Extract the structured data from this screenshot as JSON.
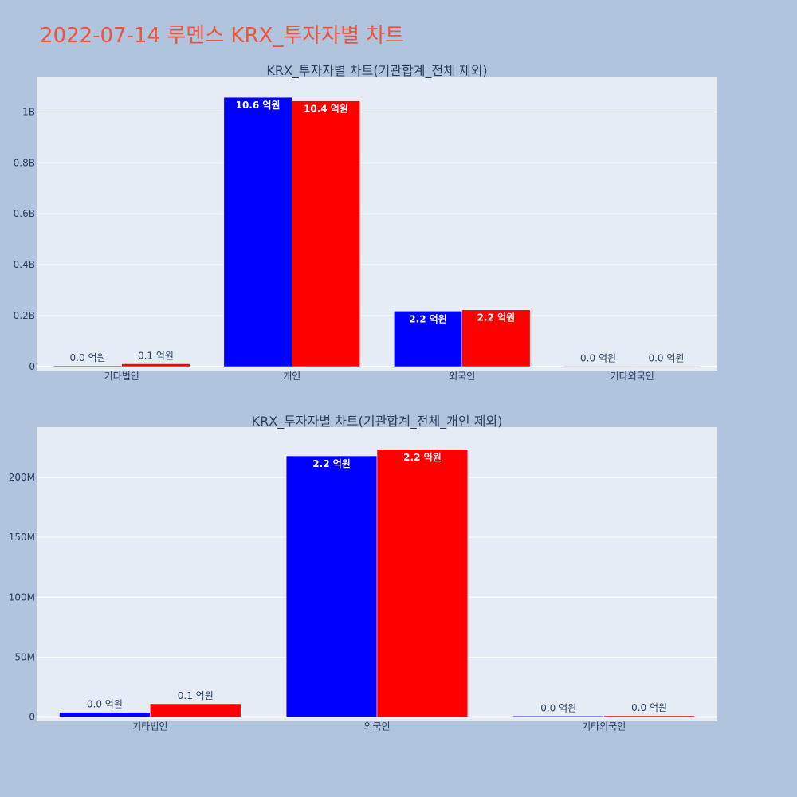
{
  "page_title": "2022-07-14 루멘스 KRX_투자자별 차트",
  "colors": {
    "background": "#b0c4de",
    "plot_bg": "#e5ecf6",
    "series_a": "#0000ff",
    "series_b": "#ff0000",
    "title": "#ef553b"
  },
  "chart_data": [
    {
      "type": "bar",
      "title": "KRX_투자자별 차트(기관합계_전체 제외)",
      "categories": [
        "기타법인",
        "개인",
        "외국인",
        "기타외국인"
      ],
      "series": [
        {
          "values": [
            3000000,
            1057000000,
            218000000,
            800000
          ],
          "labels": [
            "0.0 억원",
            "10.6 억원",
            "2.2 억원",
            "0.0 억원"
          ],
          "color": "#0000ff"
        },
        {
          "values": [
            11000000,
            1043000000,
            223000000,
            800000
          ],
          "labels": [
            "0.1 억원",
            "10.4 억원",
            "2.2 억원",
            "0.0 억원"
          ],
          "color": "#ff0000"
        }
      ],
      "ylim": [
        0,
        1120000000
      ],
      "yticks": [
        0,
        200000000,
        400000000,
        600000000,
        800000000,
        1000000000
      ],
      "ytick_labels": [
        "0",
        "0.2B",
        "0.4B",
        "0.6B",
        "0.8B",
        "1B"
      ],
      "grid": true
    },
    {
      "type": "bar",
      "title": "KRX_투자자별 차트(기관합계_전체_개인 제외)",
      "categories": [
        "기타법인",
        "외국인",
        "기타외국인"
      ],
      "series": [
        {
          "values": [
            3900000,
            218000000,
            800000
          ],
          "labels": [
            "0.0 억원",
            "2.2 억원",
            "0.0 억원"
          ],
          "color": "#0000ff"
        },
        {
          "values": [
            11000000,
            223500000,
            1000000
          ],
          "labels": [
            "0.1 억원",
            "2.2 억원",
            "0.0 억원"
          ],
          "color": "#ff0000"
        }
      ],
      "ylim": [
        0,
        238000000
      ],
      "yticks": [
        0,
        50000000,
        100000000,
        150000000,
        200000000
      ],
      "ytick_labels": [
        "0",
        "50M",
        "100M",
        "150M",
        "200M"
      ],
      "grid": true
    }
  ]
}
